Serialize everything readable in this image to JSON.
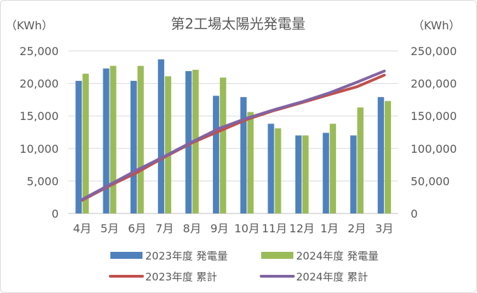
{
  "chart_data": {
    "type": "bar+line",
    "title": "第2工場太陽光発電量",
    "y_left_unit": "（KWh）",
    "y_right_unit": "（KWh）",
    "categories": [
      "4月",
      "5月",
      "6月",
      "7月",
      "8月",
      "9月",
      "10月",
      "11月",
      "12月",
      "1月",
      "2月",
      "3月"
    ],
    "ylim_left": [
      0,
      25000
    ],
    "ylim_right": [
      0,
      250000
    ],
    "y_left_ticks": [
      "0",
      "5,000",
      "10,000",
      "15,000",
      "20,000",
      "25,000"
    ],
    "y_right_ticks": [
      "0",
      "50,000",
      "100,000",
      "150,000",
      "200,000",
      "250,000"
    ],
    "gridlines": true,
    "legend_position": "bottom",
    "bar_series": [
      {
        "name": "2023年度 発電量",
        "color": "#4f81bd",
        "values": [
          20400,
          22300,
          20400,
          23700,
          21900,
          18100,
          17900,
          13800,
          12000,
          12400,
          12000,
          17900
        ]
      },
      {
        "name": "2024年度 発電量",
        "color": "#9bbb59",
        "values": [
          21500,
          22700,
          22700,
          21100,
          22100,
          20900,
          15600,
          13100,
          12000,
          13800,
          16300,
          17300
        ]
      }
    ],
    "line_series": [
      {
        "name": "2023年度 累計",
        "color": "#c0504d",
        "values": [
          20400,
          42700,
          63100,
          86800,
          108700,
          126800,
          144700,
          158500,
          170500,
          182900,
          194900,
          212800
        ]
      },
      {
        "name": "2024年度 累計",
        "color": "#8064a2",
        "values": [
          21500,
          44200,
          66900,
          88000,
          110100,
          131000,
          146600,
          159700,
          171700,
          185500,
          201800,
          219100
        ]
      }
    ]
  }
}
